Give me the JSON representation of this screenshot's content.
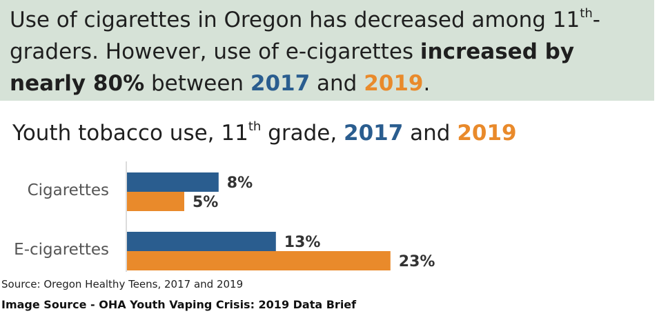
{
  "headline": {
    "line1": "Use of cigarettes in Oregon has decreased among 11",
    "sup": "th",
    "line1_end": "-",
    "line2": "graders. However, use of e-cigarettes ",
    "bold_phrase": "increased by nearly 80%",
    "mid": " between ",
    "year1": "2017",
    "and": " and ",
    "year2": "2019",
    "period": "."
  },
  "chart_title": {
    "prefix": "Youth tobacco use, 11",
    "sup": "th",
    "middle": " grade, ",
    "year1": "2017",
    "and": " and ",
    "year2": "2019"
  },
  "colors": {
    "2017": "#2a5d8f",
    "2019": "#e98a2b",
    "banner": "#d6e2d7"
  },
  "chart_data": {
    "type": "bar",
    "orientation": "horizontal",
    "title": "Youth tobacco use, 11th grade, 2017 and 2019",
    "categories": [
      "Cigarettes",
      "E-cigarettes"
    ],
    "series": [
      {
        "name": "2017",
        "values": [
          8,
          13
        ],
        "labels": [
          "8%",
          "13%"
        ]
      },
      {
        "name": "2019",
        "values": [
          5,
          23
        ],
        "labels": [
          "5%",
          "23%"
        ]
      }
    ],
    "unit": "%",
    "xlim": [
      0,
      25
    ],
    "grid": false
  },
  "source": "Source: Oregon Healthy Teens, 2017 and 2019",
  "image_source": "Image Source - OHA Youth Vaping Crisis: 2019 Data Brief"
}
